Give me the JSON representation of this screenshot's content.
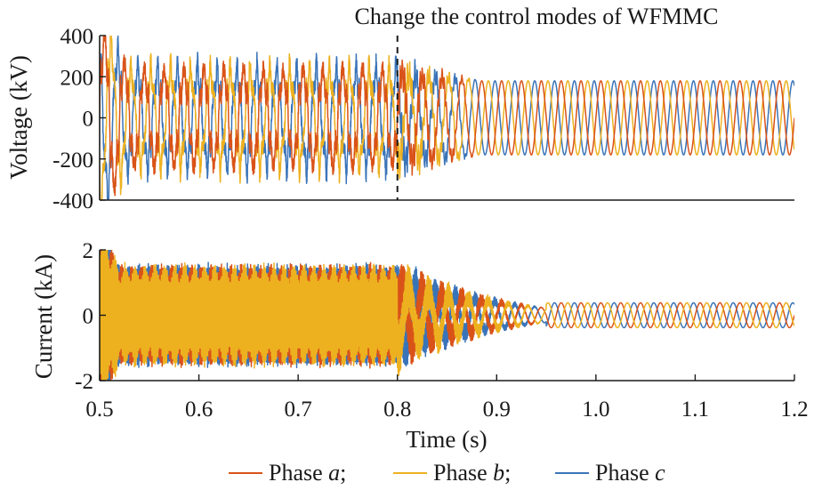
{
  "colors": {
    "phase_a": "#d95319",
    "phase_b": "#edb120",
    "phase_c": "#3a74b8",
    "axis": "#1a1a1a",
    "event_line": "#1a1a1a"
  },
  "legend": {
    "entries": [
      {
        "prefix": "Phase ",
        "italic": "a",
        "suffix": ";",
        "color_key": "phase_a"
      },
      {
        "prefix": "Phase ",
        "italic": "b",
        "suffix": ";",
        "color_key": "phase_b"
      },
      {
        "prefix": "Phase ",
        "italic": "c",
        "suffix": "",
        "color_key": "phase_c"
      }
    ]
  },
  "chart_data": [
    {
      "type": "line",
      "panel": "voltage",
      "ylabel": "Voltage (kV)",
      "xlim": [
        0.5,
        1.2
      ],
      "ylim": [
        -400,
        400
      ],
      "yticks": [
        400,
        200,
        0,
        -200,
        -400
      ],
      "annotation": {
        "text": "Change the control modes of WFMMC",
        "x": 0.8
      },
      "series": [
        {
          "phase": "a",
          "color_key": "phase_a",
          "phase_offset_deg": 0
        },
        {
          "phase": "b",
          "color_key": "phase_b",
          "phase_offset_deg": -120
        },
        {
          "phase": "c",
          "color_key": "phase_c",
          "phase_offset_deg": 120
        }
      ],
      "profile": {
        "frequency_hz": 50,
        "before_event": {
          "x_range": [
            0.5,
            0.8
          ],
          "amplitude": 215,
          "distortion": 50
        },
        "transient": {
          "x_range": [
            0.8,
            0.88
          ],
          "amplitude_start": 215,
          "amplitude_end": 185
        },
        "after_event": {
          "x_range": [
            0.88,
            1.2
          ],
          "amplitude": 180
        }
      }
    },
    {
      "type": "line",
      "panel": "current",
      "ylabel": "Current (kA)",
      "xlabel": "Time (s)",
      "xlim": [
        0.5,
        1.2
      ],
      "ylim": [
        -2,
        2
      ],
      "yticks": [
        2,
        0,
        -2
      ],
      "xticks": [
        "0.5",
        "0.6",
        "0.7",
        "0.8",
        "0.9",
        "1.0",
        "1.1",
        "1.2"
      ],
      "series": [
        {
          "phase": "a",
          "color_key": "phase_a",
          "phase_offset_deg": 0
        },
        {
          "phase": "b",
          "color_key": "phase_b",
          "phase_offset_deg": -120
        },
        {
          "phase": "c",
          "color_key": "phase_c",
          "phase_offset_deg": 120
        }
      ],
      "profile": {
        "frequency_hz": 50,
        "before_event": {
          "x_range": [
            0.5,
            0.8
          ],
          "amplitude": 1.3,
          "ripple": 0.25
        },
        "transient": {
          "x_range": [
            0.8,
            0.95
          ],
          "amplitude_start": 1.8,
          "amplitude_end": 0.4
        },
        "after_event": {
          "x_range": [
            0.95,
            1.2
          ],
          "amplitude": 0.38
        }
      }
    }
  ]
}
